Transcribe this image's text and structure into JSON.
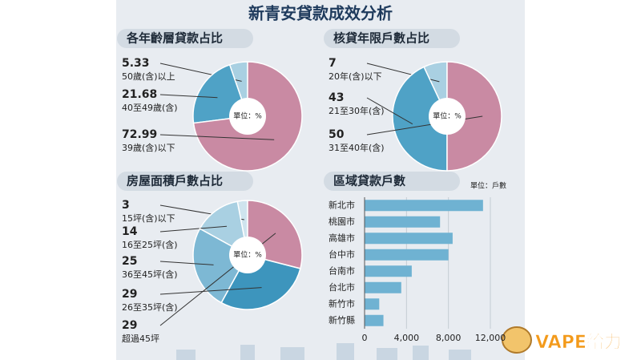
{
  "header": {
    "title": "新青安貸款成效分析"
  },
  "watermark": "VAPE給力",
  "chart_data": [
    {
      "type": "pie",
      "title": "各年齡層貸款占比",
      "unit_label": "單位：%",
      "categories": [
        "50歲(含)以上",
        "40至49歲(含)",
        "39歲(含)以下"
      ],
      "values": [
        5.33,
        21.68,
        72.99
      ],
      "colors": [
        "#a9d0e2",
        "#4fa2c6",
        "#c98aa3"
      ]
    },
    {
      "type": "pie",
      "title": "核貸年限戶數占比",
      "unit_label": "單位：%",
      "categories": [
        "20年(含)以下",
        "21至30年(含)",
        "31至40年(含)"
      ],
      "values": [
        7,
        43,
        50
      ],
      "colors": [
        "#a9d0e2",
        "#4fa2c6",
        "#c98aa3"
      ]
    },
    {
      "type": "pie",
      "title": "房屋面積戶數占比",
      "unit_label": "單位：%",
      "categories": [
        "15坪(含)以下",
        "16至25坪(含)",
        "36至45坪(含)",
        "26至35坪(含)",
        "超過45坪"
      ],
      "values": [
        3,
        14,
        25,
        29,
        29
      ],
      "colors": [
        "#cfe4ee",
        "#a9d0e2",
        "#7db8d4",
        "#3d95bd",
        "#c98aa3"
      ]
    },
    {
      "type": "bar",
      "orientation": "horizontal",
      "title": "區域貸款戶數",
      "unit_label": "單位：戶數",
      "categories": [
        "新北市",
        "桃園市",
        "高雄市",
        "台中市",
        "台南市",
        "台北市",
        "新竹市",
        "新竹縣"
      ],
      "values": [
        11300,
        7200,
        8400,
        8000,
        4500,
        3500,
        1400,
        1800
      ],
      "color": "#6fb2d2",
      "xlim": [
        0,
        12000
      ],
      "xticks": [
        0,
        {
          "value": 4000,
          "label": "4,000"
        },
        {
          "value": 8000,
          "label": "8,000"
        },
        {
          "value": 12000,
          "label": "12,000"
        }
      ]
    }
  ]
}
